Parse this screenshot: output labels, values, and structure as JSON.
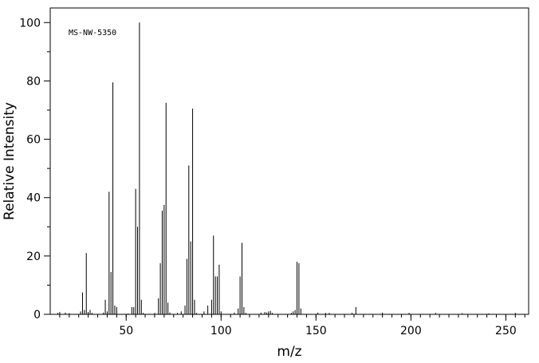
{
  "chart_data": {
    "type": "bar",
    "title": "",
    "annotation": "MS-NW-5350",
    "xlabel": "m/z",
    "ylabel": "Relative Intensity",
    "xlim": [
      10,
      262
    ],
    "ylim": [
      0,
      105
    ],
    "xticks": [
      50,
      100,
      150,
      200,
      250
    ],
    "yticks": [
      0,
      20,
      40,
      60,
      80,
      100
    ],
    "grid": false,
    "x": [
      14,
      15,
      18,
      20,
      26,
      27,
      28,
      29,
      30,
      31,
      32,
      38,
      39,
      40,
      41,
      42,
      43,
      44,
      45,
      51,
      53,
      54,
      55,
      56,
      57,
      58,
      59,
      65,
      67,
      68,
      69,
      70,
      71,
      72,
      73,
      77,
      79,
      81,
      82,
      83,
      84,
      85,
      86,
      87,
      91,
      93,
      95,
      96,
      97,
      98,
      99,
      100,
      107,
      109,
      110,
      111,
      112,
      113,
      121,
      123,
      124,
      125,
      126,
      127,
      137,
      138,
      139,
      140,
      141,
      142,
      151,
      155,
      157,
      169,
      171,
      185,
      199,
      213,
      227,
      241,
      255
    ],
    "values": [
      0.5,
      0.8,
      0.6,
      0.4,
      1.0,
      7.5,
      1.5,
      21.0,
      0.8,
      1.5,
      0.5,
      0.6,
      5.0,
      1.0,
      42.0,
      14.5,
      79.5,
      3.0,
      2.5,
      0.3,
      2.5,
      2.5,
      43.0,
      30.0,
      100.0,
      5.0,
      0.5,
      0.5,
      5.5,
      17.5,
      35.5,
      37.5,
      72.5,
      4.0,
      0.6,
      0.5,
      1.0,
      3.0,
      19.0,
      51.0,
      25.0,
      70.5,
      5.0,
      0.5,
      1.0,
      3.0,
      5.0,
      27.0,
      13.0,
      13.0,
      17.0,
      1.0,
      0.6,
      2.0,
      13.0,
      24.5,
      2.5,
      0.5,
      0.6,
      0.8,
      0.6,
      1.0,
      1.2,
      0.5,
      0.5,
      1.0,
      1.5,
      18.0,
      17.5,
      2.0,
      0.6,
      0.5,
      0.5,
      0.5,
      2.5,
      0.6,
      0.5,
      0.5,
      0.4,
      0.3,
      0.5
    ]
  }
}
